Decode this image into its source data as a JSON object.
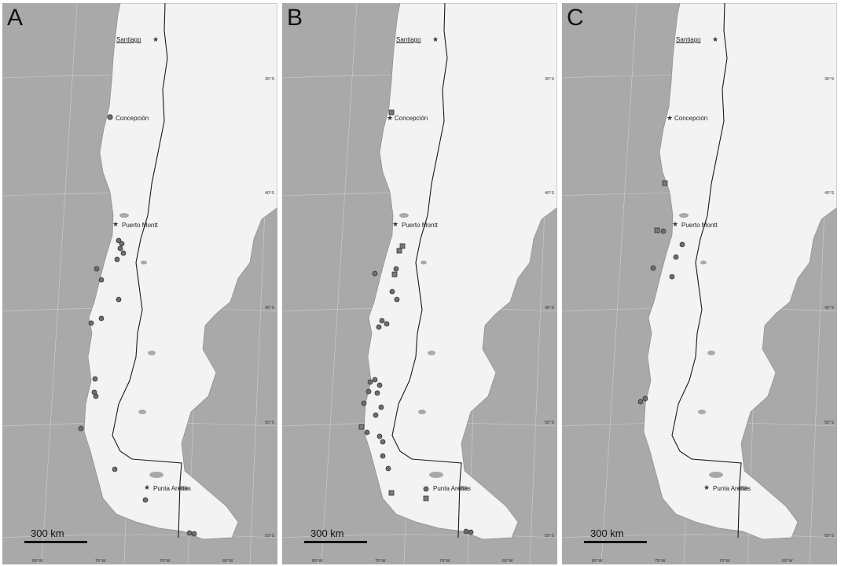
{
  "panels": [
    {
      "letter": "A",
      "cities": [
        "Santiago",
        "Concepción",
        "Puerto Montt",
        "Punta Arenas"
      ],
      "latitudes": [
        "35°S",
        "40°S",
        "45°S",
        "50°S",
        "55°S"
      ],
      "longitudes": [
        "80°W",
        "75°W",
        "70°W",
        "65°W"
      ],
      "scale": "300 km"
    },
    {
      "letter": "B",
      "cities": [
        "Santiago",
        "Concepción",
        "Puerto Montt",
        "Punta Arenas"
      ],
      "latitudes": [
        "35°S",
        "40°S",
        "45°S",
        "50°S",
        "55°S"
      ],
      "longitudes": [
        "80°W",
        "75°W",
        "70°W",
        "65°W"
      ],
      "scale": "300 km"
    },
    {
      "letter": "C",
      "cities": [
        "Santiago",
        "Concepción",
        "Puerto Montt",
        "Punta Arenas"
      ],
      "latitudes": [
        "35°S",
        "40°S",
        "45°S",
        "50°S",
        "55°S"
      ],
      "longitudes": [
        "80°W",
        "75°W",
        "70°W",
        "65°W"
      ],
      "scale": "300 km"
    }
  ],
  "colors": {
    "ocean": "#a9a9a9",
    "land": "#f3f3f3",
    "border": "#1a1a1a",
    "marker": "#6e6e6e"
  }
}
